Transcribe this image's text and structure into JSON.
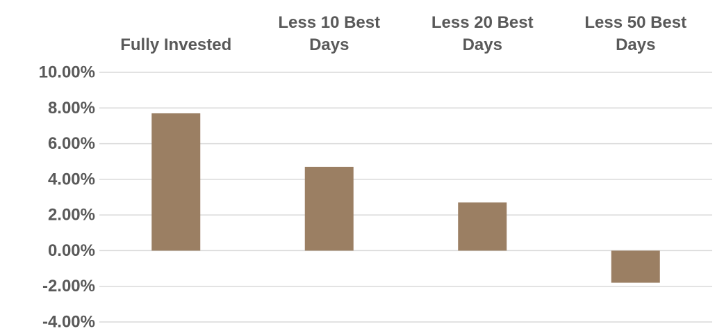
{
  "chart_data": {
    "type": "bar",
    "categories": [
      [
        "Fully Invested"
      ],
      [
        "Less 10 Best",
        "Days"
      ],
      [
        "Less 20 Best",
        "Days"
      ],
      [
        "Less 50 Best",
        "Days"
      ]
    ],
    "values": [
      7.7,
      4.7,
      2.7,
      -1.8
    ],
    "value_format": "percent",
    "yticks": [
      "10.00%",
      "8.00%",
      "6.00%",
      "4.00%",
      "2.00%",
      "0.00%",
      "-2.00%",
      "-4.00%"
    ],
    "ylim": [
      -4,
      10
    ],
    "bar_color": "#9b7f63",
    "grid": true,
    "title": "",
    "xlabel": "",
    "ylabel": "",
    "legend": "none",
    "category_axis_position": "top"
  }
}
